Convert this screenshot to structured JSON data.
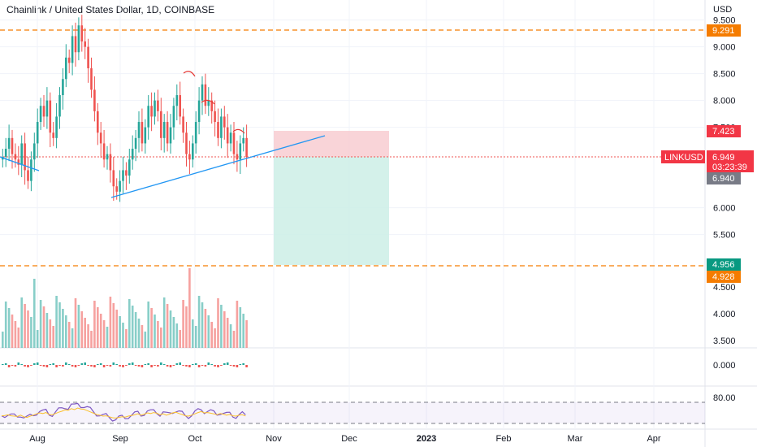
{
  "header": {
    "title": "Chainlink / United States Dollar, 1D, COINBASE"
  },
  "price_axis": {
    "unit": "USD",
    "labels": [
      "9.500",
      "9.000",
      "8.500",
      "8.000",
      "7.500",
      "6.000",
      "5.500",
      "4.500",
      "4.000",
      "3.500"
    ],
    "label_values": [
      9.5,
      9.0,
      8.5,
      8.0,
      7.5,
      6.0,
      5.5,
      4.5,
      4.0,
      3.5
    ]
  },
  "price_badges": {
    "upper_line": {
      "text": "9.291",
      "color": "#f57c00"
    },
    "stop": {
      "text": "7.423",
      "color": "#f23645"
    },
    "current": {
      "text": "6.949",
      "countdown": "03:23:39",
      "color": "#f23645"
    },
    "prev": {
      "text": "6.940",
      "color": "#787b86"
    },
    "target": {
      "text": "4.956",
      "color": "#089981"
    },
    "lower_line": {
      "text": "4.928",
      "color": "#f57c00"
    }
  },
  "symbol_label": "LINKUSD",
  "indicator_axes": {
    "macd_label": "0.000",
    "rsi_label": "80.00"
  },
  "time_axis": {
    "labels": [
      "Aug",
      "Sep",
      "Oct",
      "Nov",
      "Dec",
      "2023",
      "Feb",
      "Mar",
      "Apr"
    ]
  },
  "colors": {
    "up": "#26a69a",
    "down": "#ef5350",
    "trend_line": "#2196f3",
    "dashed_level": "#f57c00",
    "rsi_line": "#7e57c2",
    "rsi_ma": "#fbc02d",
    "stop_zone": "#f7c9ce",
    "target_zone": "#cdeee6"
  },
  "chart_data": {
    "type": "candlestick",
    "symbol": "LINKUSD",
    "timeframe": "1D",
    "last_price": 6.949,
    "levels": {
      "upper": 9.291,
      "lower": 4.928
    },
    "position": {
      "entry": 6.949,
      "stop": 7.423,
      "target": 4.956
    },
    "trend_line": [
      {
        "t": "2022-08-27",
        "price": 6.2
      },
      {
        "t": "2022-10-30",
        "price": 7.2
      }
    ],
    "trend_line_extension_end": {
      "t": "2022-11-30",
      "price": 7.4
    }
  }
}
